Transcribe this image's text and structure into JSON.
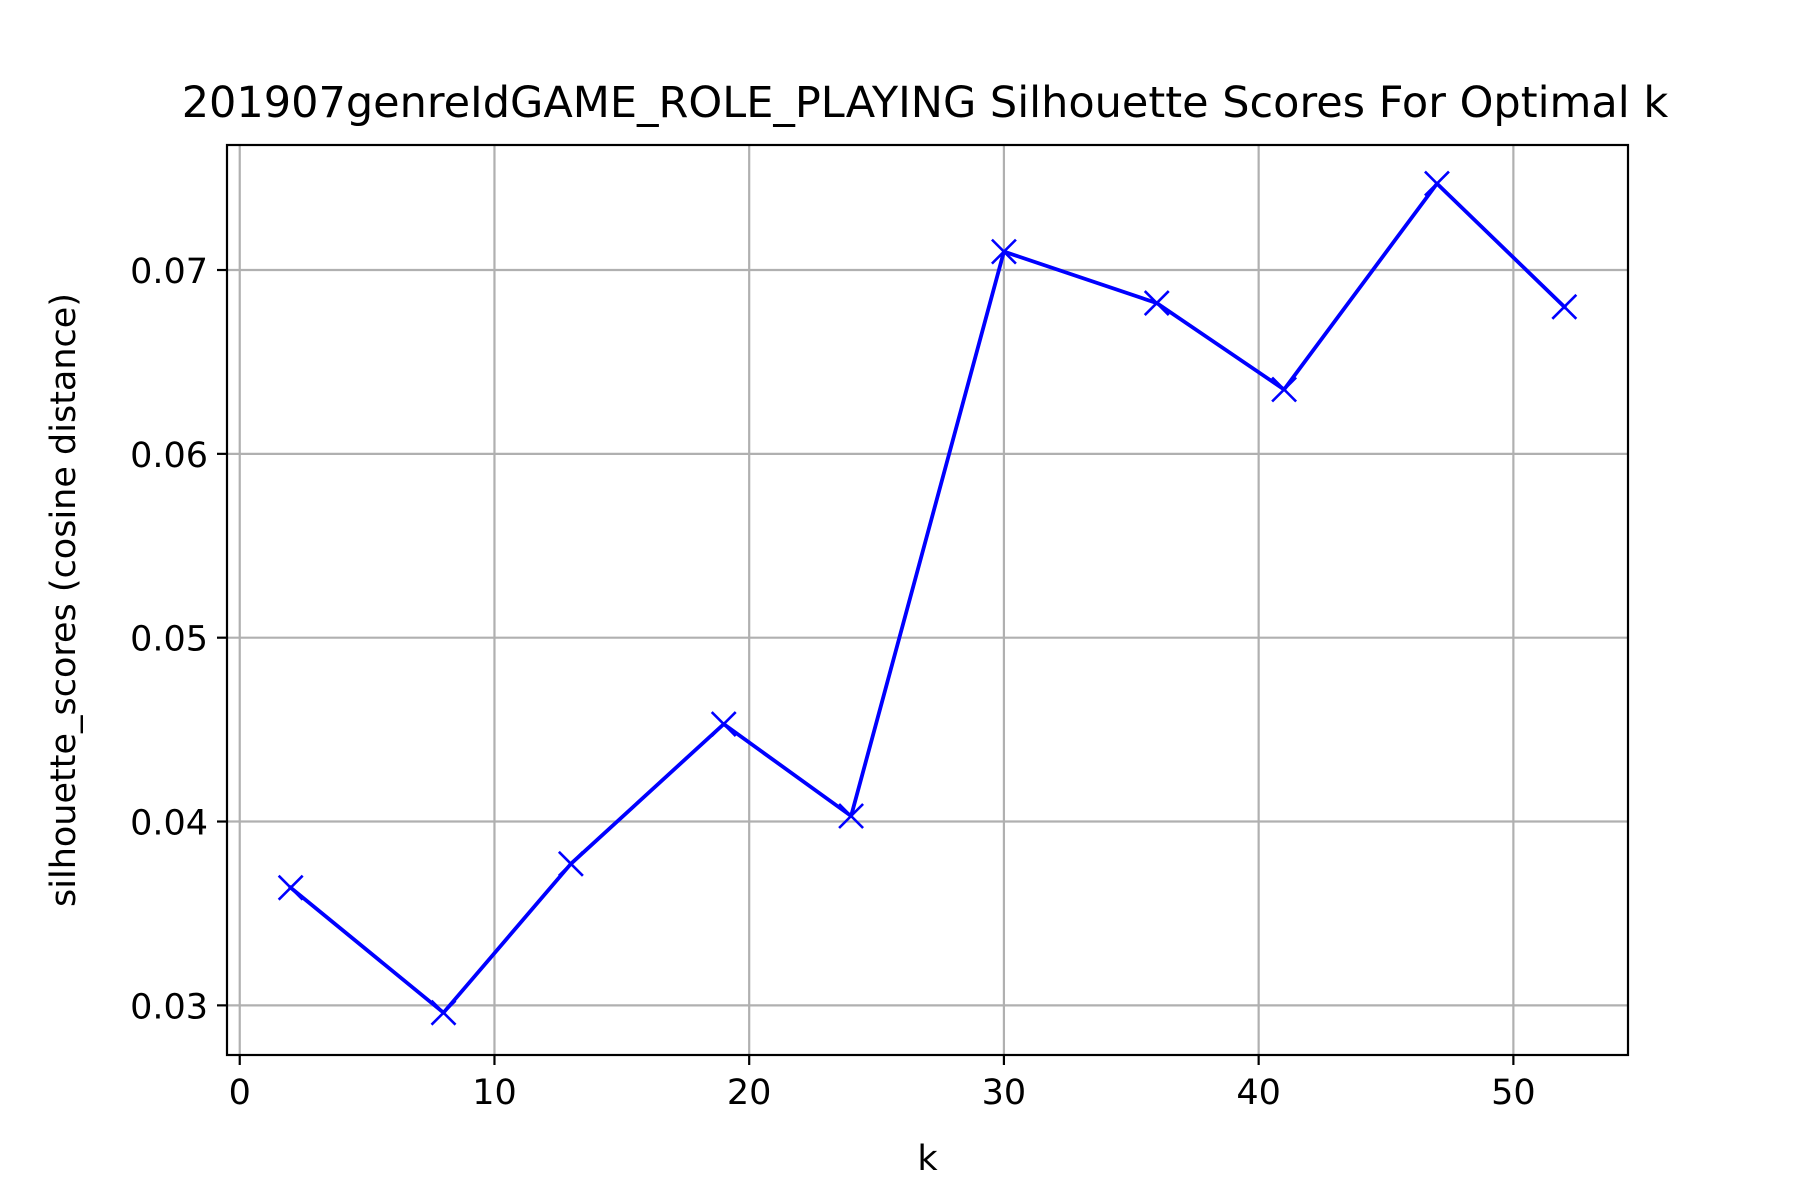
{
  "chart_data": {
    "type": "line",
    "title": "201907genreIdGAME_ROLE_PLAYING Silhouette Scores For Optimal k",
    "xlabel": "k",
    "ylabel": "silhouette_scores (cosine distance)",
    "xlim": [
      -0.5,
      54.5
    ],
    "ylim": [
      0.0273,
      0.0768
    ],
    "xticks": [
      0,
      10,
      20,
      30,
      40,
      50
    ],
    "xtick_labels": [
      "0",
      "10",
      "20",
      "30",
      "40",
      "50"
    ],
    "yticks": [
      0.03,
      0.04,
      0.05,
      0.06,
      0.07
    ],
    "ytick_labels": [
      "0.03",
      "0.04",
      "0.05",
      "0.06",
      "0.07"
    ],
    "grid": true,
    "legend": false,
    "series": [
      {
        "color": "#0000ff",
        "marker": "x",
        "x": [
          2,
          8,
          13,
          19,
          24,
          30,
          36,
          41,
          47,
          52
        ],
        "y": [
          0.0364,
          0.0296,
          0.0377,
          0.0453,
          0.0403,
          0.071,
          0.0682,
          0.0635,
          0.0747,
          0.068
        ]
      }
    ]
  }
}
